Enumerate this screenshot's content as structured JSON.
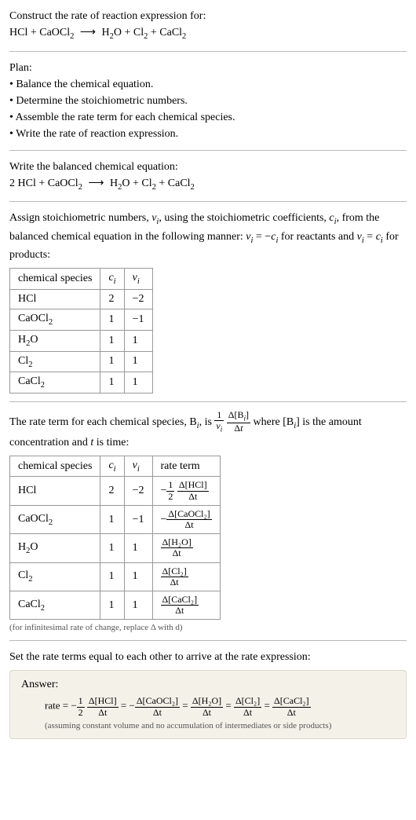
{
  "intro": {
    "construct_label": "Construct the rate of reaction expression for:",
    "equation_lhs1": "HCl",
    "equation_lhs2": "CaOCl",
    "equation_rhs1": "H",
    "equation_rhs2": "O",
    "equation_rhs3": "Cl",
    "equation_rhs4": "CaCl"
  },
  "plan": {
    "header": "Plan:",
    "b1": "• Balance the chemical equation.",
    "b2": "• Determine the stoichiometric numbers.",
    "b3": "• Assemble the rate term for each chemical species.",
    "b4": "• Write the rate of reaction expression."
  },
  "balanced": {
    "header": "Write the balanced chemical equation:",
    "coef1": "2"
  },
  "assign": {
    "text1": "Assign stoichiometric numbers, ",
    "text2": ", using the stoichiometric coefficients, ",
    "text3": ", from the balanced chemical equation in the following manner: ",
    "text4": " for reactants and ",
    "text5": " for products:",
    "nu_i": "ν",
    "c_i": "c",
    "eq_react": " = −",
    "eq_prod": " = "
  },
  "table1": {
    "h1": "chemical species",
    "h2": "c",
    "h3": "ν",
    "r1c1": "HCl",
    "r1c2": "2",
    "r1c3": "−2",
    "r2c1": "CaOCl",
    "r2c2": "1",
    "r2c3": "−1",
    "r3c1": "H",
    "r3c1b": "O",
    "r3c2": "1",
    "r3c3": "1",
    "r4c1": "Cl",
    "r4c2": "1",
    "r4c3": "1",
    "r5c1": "CaCl",
    "r5c2": "1",
    "r5c3": "1"
  },
  "rate_term": {
    "text1": "The rate term for each chemical species, B",
    "text2": ", is ",
    "text3": " where [B",
    "text4": "] is the amount concentration and ",
    "text5": " is time:"
  },
  "table2": {
    "h1": "chemical species",
    "h2": "c",
    "h3": "ν",
    "h4": "rate term",
    "r1c1": "HCl",
    "r1c2": "2",
    "r1c3": "−2",
    "r2c1": "CaOCl",
    "r2c2": "1",
    "r2c3": "−1",
    "r3c1": "H",
    "r3c1b": "O",
    "r3c2": "1",
    "r3c3": "1",
    "r4c1": "Cl",
    "r4c2": "1",
    "r4c3": "1",
    "r5c1": "CaCl",
    "r5c2": "1",
    "r5c3": "1",
    "neg": "−",
    "half_n": "1",
    "half_d": "2",
    "d_hcl_n": "Δ[HCl]",
    "d_dt": "Δt",
    "d_caocl_n": "Δ[CaOCl₂]",
    "d_h2o_n": "Δ[H₂O]",
    "d_cl2_n": "Δ[Cl₂]",
    "d_cacl2_n": "Δ[CaCl₂]"
  },
  "inf_note": "(for infinitesimal rate of change, replace Δ with d)",
  "set_equal": "Set the rate terms equal to each other to arrive at the rate expression:",
  "answer": {
    "label": "Answer:",
    "rate": "rate = ",
    "neg": "−",
    "eq": " = ",
    "note": "(assuming constant volume and no accumulation of intermediates or side products)"
  },
  "colors": {
    "hr": "#bbbbbb",
    "border": "#999999",
    "note": "#555555",
    "answer_bg": "#f4f1e9",
    "answer_border": "#ddd9cc"
  }
}
